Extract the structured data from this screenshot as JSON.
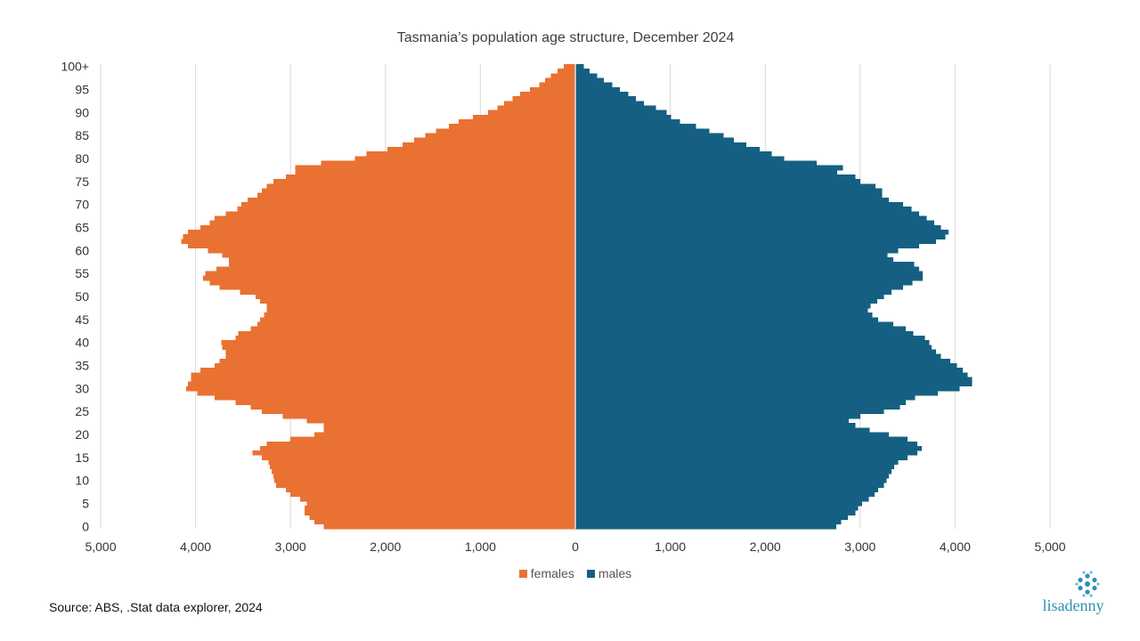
{
  "chart_data": {
    "type": "bar",
    "orientation": "horizontal",
    "title": "Tasmania’s population age structure, December 2024",
    "xlim": [
      -5000,
      5000
    ],
    "x_tick_values": [
      -5000,
      -4000,
      -3000,
      -2000,
      -1000,
      0,
      1000,
      2000,
      3000,
      4000,
      5000
    ],
    "x_tick_labels": [
      "5,000",
      "4,000",
      "3,000",
      "2,000",
      "1,000",
      "0",
      "1,000",
      "2,000",
      "3,000",
      "4,000",
      "5,000"
    ],
    "y_tick_labels": [
      "0",
      "5",
      "10",
      "15",
      "20",
      "25",
      "30",
      "35",
      "40",
      "45",
      "50",
      "55",
      "60",
      "65",
      "70",
      "75",
      "80",
      "85",
      "90",
      "95",
      "100+"
    ],
    "grid": "vertical",
    "legend_position": "bottom",
    "categories_note": "single years of age 0 to 100+, bottom to top",
    "series": [
      {
        "name": "females",
        "color": "#E97132",
        "values": [
          2650,
          2750,
          2800,
          2850,
          2850,
          2830,
          2900,
          3000,
          3050,
          3150,
          3170,
          3180,
          3200,
          3220,
          3230,
          3300,
          3400,
          3320,
          3250,
          3000,
          2750,
          2650,
          2650,
          2830,
          3080,
          3300,
          3420,
          3580,
          3800,
          3980,
          4100,
          4080,
          4050,
          4050,
          3950,
          3800,
          3750,
          3680,
          3680,
          3720,
          3730,
          3580,
          3550,
          3420,
          3350,
          3320,
          3280,
          3250,
          3250,
          3320,
          3370,
          3530,
          3750,
          3850,
          3920,
          3900,
          3780,
          3650,
          3650,
          3720,
          3870,
          4080,
          4150,
          4130,
          4080,
          3950,
          3850,
          3800,
          3680,
          3560,
          3520,
          3450,
          3350,
          3300,
          3250,
          3180,
          3050,
          2950,
          2950,
          2680,
          2320,
          2200,
          1980,
          1820,
          1700,
          1580,
          1470,
          1330,
          1230,
          1080,
          920,
          820,
          750,
          660,
          580,
          480,
          380,
          320,
          260,
          190,
          120
        ]
      },
      {
        "name": "males",
        "color": "#156082",
        "values": [
          2750,
          2800,
          2870,
          2950,
          2980,
          3020,
          3090,
          3150,
          3190,
          3250,
          3280,
          3300,
          3330,
          3360,
          3400,
          3500,
          3600,
          3650,
          3600,
          3500,
          3300,
          3100,
          2950,
          2880,
          3000,
          3250,
          3420,
          3480,
          3580,
          3820,
          4050,
          4180,
          4180,
          4130,
          4080,
          4020,
          3950,
          3850,
          3800,
          3750,
          3730,
          3680,
          3560,
          3480,
          3350,
          3190,
          3130,
          3080,
          3110,
          3180,
          3250,
          3330,
          3450,
          3550,
          3660,
          3660,
          3620,
          3570,
          3350,
          3290,
          3400,
          3620,
          3800,
          3900,
          3930,
          3850,
          3780,
          3700,
          3620,
          3540,
          3450,
          3300,
          3230,
          3230,
          3160,
          3000,
          2950,
          2760,
          2820,
          2540,
          2200,
          2070,
          1940,
          1800,
          1670,
          1560,
          1410,
          1270,
          1100,
          1010,
          960,
          850,
          720,
          640,
          560,
          470,
          390,
          300,
          230,
          150,
          90
        ]
      }
    ]
  },
  "legend": {
    "females_label": "females",
    "males_label": "males"
  },
  "footer": {
    "source": "Source: ABS, .Stat data explorer, 2024"
  },
  "logo": {
    "text": "lisadenny",
    "color": "#2e8fb5"
  }
}
